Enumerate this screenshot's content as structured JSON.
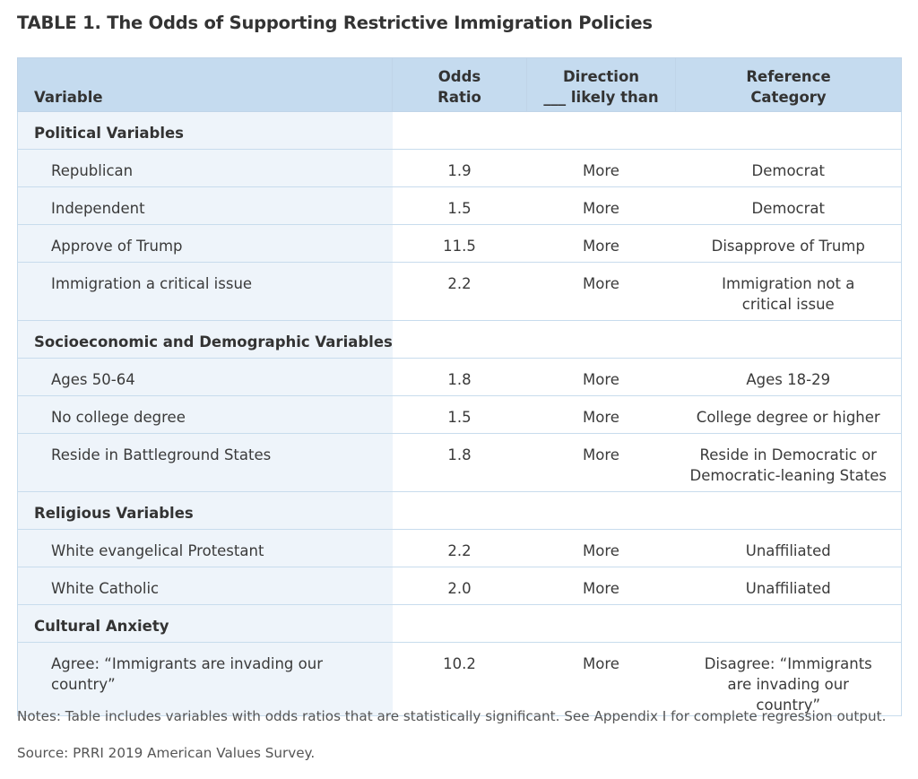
{
  "title": "TABLE 1. The Odds of Supporting Restrictive Immigration Policies",
  "headers": {
    "variable": "Variable",
    "odds_ratio_line1": "Odds",
    "odds_ratio_line2": "Ratio",
    "direction_line1": "Direction",
    "direction_line2": "___ likely than",
    "reference_line1": "Reference",
    "reference_line2": "Category"
  },
  "sections": [
    {
      "name": "Political Variables",
      "rows": [
        {
          "variable": "Republican",
          "odds_ratio": "1.9",
          "direction": "More",
          "reference": "Democrat"
        },
        {
          "variable": "Independent",
          "odds_ratio": "1.5",
          "direction": "More",
          "reference": "Democrat"
        },
        {
          "variable": "Approve of Trump",
          "odds_ratio": "11.5",
          "direction": "More",
          "reference": "Disapprove of Trump"
        },
        {
          "variable": "Immigration a critical issue",
          "odds_ratio": "2.2",
          "direction": "More",
          "reference": "Immigration not a critical  issue"
        }
      ]
    },
    {
      "name": "Socioeconomic and Demographic Variables",
      "rows": [
        {
          "variable": "Ages 50-64",
          "odds_ratio": "1.8",
          "direction": "More",
          "reference": "Ages 18-29"
        },
        {
          "variable": "No college degree",
          "odds_ratio": "1.5",
          "direction": "More",
          "reference": "College degree or higher"
        },
        {
          "variable": "Reside in Battleground States",
          "odds_ratio": "1.8",
          "direction": "More",
          "reference": "Reside in Democratic or Democratic-leaning States"
        }
      ]
    },
    {
      "name": "Religious Variables",
      "rows": [
        {
          "variable": "White evangelical Protestant",
          "odds_ratio": "2.2",
          "direction": "More",
          "reference": "Unaffiliated"
        },
        {
          "variable": "White Catholic",
          "odds_ratio": "2.0",
          "direction": "More",
          "reference": "Unaffiliated"
        }
      ]
    },
    {
      "name": "Cultural Anxiety",
      "rows": [
        {
          "variable": "Agree: “Immigrants are invading our country”",
          "odds_ratio": "10.2",
          "direction": "More",
          "reference": "Disagree: “Immigrants are invading our country”"
        }
      ]
    }
  ],
  "notes": "Notes: Table includes variables with odds ratios that are statistically significant. See Appendix I for complete regression output.",
  "source": "Source: PRRI 2019 American Values Survey.",
  "colors": {
    "header_bg": "#c5dbef",
    "first_column_bg": "#eef4fa",
    "border": "#c8dced"
  }
}
